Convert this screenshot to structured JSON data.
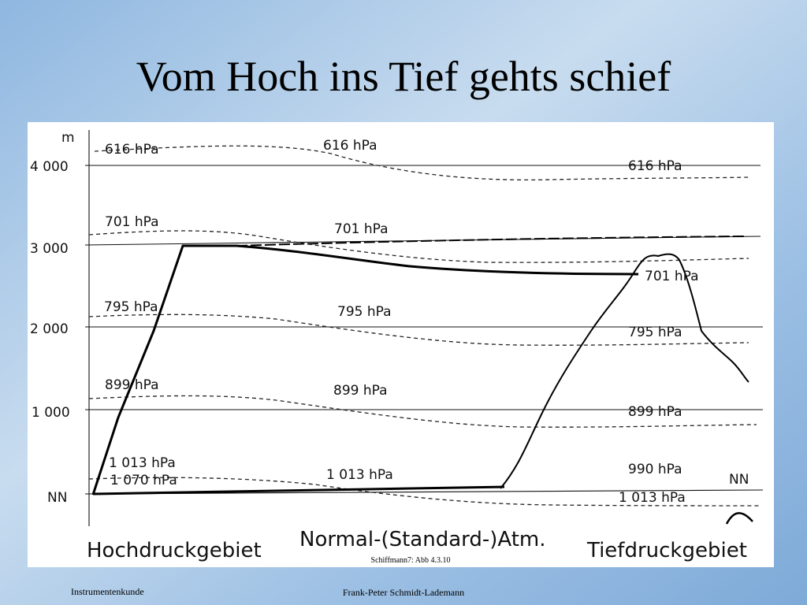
{
  "title": "Vom Hoch ins Tief gehts schief",
  "diagram": {
    "axis_labels": [
      "m",
      "4 000",
      "3 000",
      "2 000",
      "1 000",
      "NN"
    ],
    "pressure_labels": [
      "616 hPa",
      "616 hPa",
      "616 hPa",
      "701 hPa",
      "701 hPa",
      "701 hPa",
      "795 hPa",
      "795 hPa",
      "795 hPa",
      "899 hPa",
      "899 hPa",
      "899 hPa",
      "1 013 hPa",
      "1 070 hPa",
      "1 013 hPa",
      "990 hPa",
      "1 013 hPa",
      "NN"
    ],
    "regions": [
      "Hochdruckgebiet",
      "Normal-(Standard-)Atm.",
      "Tiefdruckgebiet"
    ],
    "caption": "Schiffmann7: Abb 4.3.10"
  },
  "footer": {
    "left": "Instrumentenkunde",
    "right": "Frank-Peter Schmidt-Lademann"
  }
}
